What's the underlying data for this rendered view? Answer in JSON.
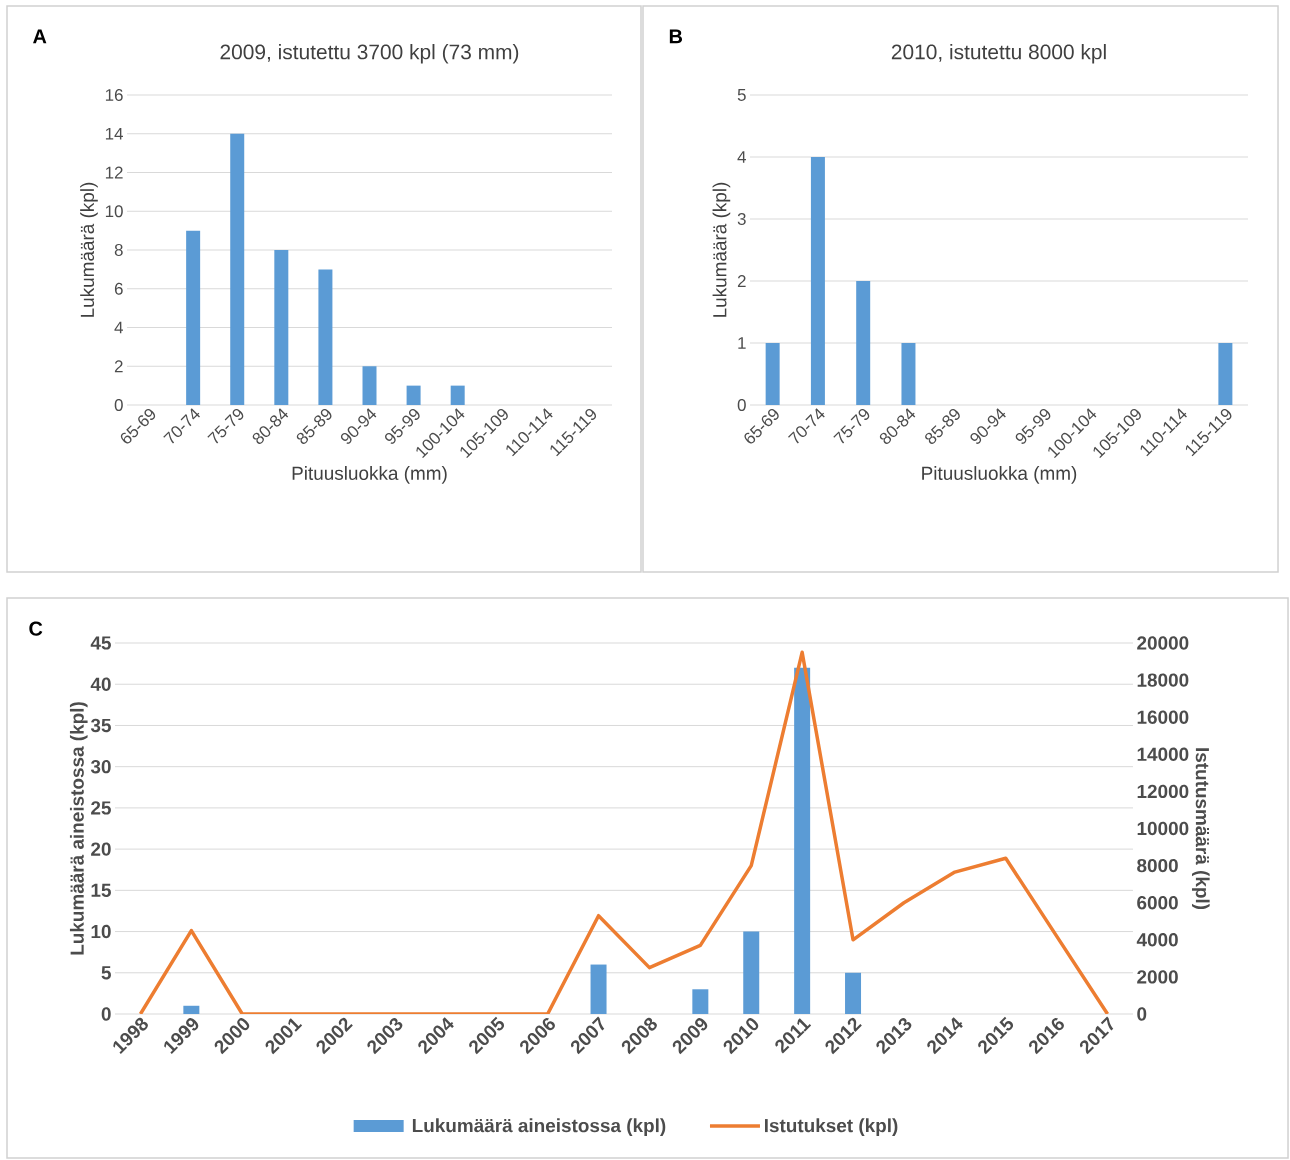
{
  "chart_data": [
    {
      "type": "bar",
      "title": "2009, istutettu 3700 kpl (73 mm)",
      "xlabel": "Pituusluokka (mm)",
      "ylabel": "Lukumäärä (kpl)",
      "annotations": [
        "A"
      ],
      "categories": [
        "65-69",
        "70-74",
        "75-79",
        "80-84",
        "85-89",
        "90-94",
        "95-99",
        "100-104",
        "105-109",
        "110-114",
        "115-119"
      ],
      "values": [
        0,
        9,
        14,
        8,
        7,
        2,
        1,
        1,
        0,
        0,
        0
      ],
      "color": "#5b9bd5",
      "ylim": [
        0,
        16
      ],
      "yticks": [
        0,
        2,
        4,
        6,
        8,
        10,
        12,
        14,
        16
      ],
      "grid": "y"
    },
    {
      "type": "bar",
      "title": "2010, istutettu 8000 kpl",
      "xlabel": "Pituusluokka (mm)",
      "ylabel": "Lukumäärä (kpl)",
      "annotations": [
        "B"
      ],
      "categories": [
        "65-69",
        "70-74",
        "75-79",
        "80-84",
        "85-89",
        "90-94",
        "95-99",
        "100-104",
        "105-109",
        "110-114",
        "115-119"
      ],
      "values": [
        1,
        4,
        2,
        1,
        0,
        0,
        0,
        0,
        0,
        0,
        1
      ],
      "color": "#5b9bd5",
      "ylim": [
        0,
        5
      ],
      "yticks": [
        0,
        1,
        2,
        3,
        4,
        5
      ],
      "grid": "y"
    },
    {
      "type": "bar",
      "ylabel": "Lukumäärä aineistossa (kpl)",
      "y2label": "Istutusmäärä (kpl)",
      "annotations": [
        "C"
      ],
      "categories": [
        "1998",
        "1999",
        "2000",
        "2001",
        "2002",
        "2003",
        "2004",
        "2005",
        "2006",
        "2007",
        "2008",
        "2009",
        "2010",
        "2011",
        "2012",
        "2013",
        "2014",
        "2015",
        "2016",
        "2017"
      ],
      "series": [
        {
          "name": "Lukumäärä aineistossa (kpl)",
          "type": "bar",
          "color": "#5b9bd5",
          "values": [
            0,
            1,
            0,
            0,
            0,
            0,
            0,
            0,
            0,
            6,
            0,
            3,
            10,
            42,
            5,
            0,
            0,
            0,
            0,
            0
          ]
        },
        {
          "name": "Istutukset (kpl)",
          "type": "line",
          "axis": "y2",
          "color": "#ed7d31",
          "values": [
            0,
            4500,
            0,
            0,
            0,
            0,
            0,
            0,
            0,
            5300,
            2500,
            3700,
            8000,
            19500,
            4000,
            6000,
            7650,
            8400,
            4200,
            0
          ]
        }
      ],
      "ylim": [
        0,
        45
      ],
      "yticks": [
        0,
        5,
        10,
        15,
        20,
        25,
        30,
        35,
        40,
        45
      ],
      "y2lim": [
        0,
        20000
      ],
      "y2ticks": [
        0,
        2000,
        4000,
        6000,
        8000,
        10000,
        12000,
        14000,
        16000,
        18000,
        20000
      ],
      "grid": "y",
      "legend": "bottom"
    }
  ]
}
